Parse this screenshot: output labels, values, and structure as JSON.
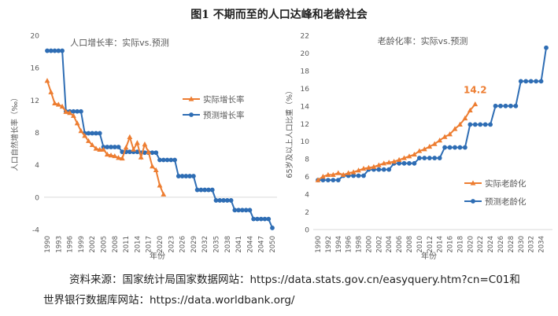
{
  "figure_title": "图1 不期而至的人口达峰和老龄社会",
  "source_line1": "资料来源：国家统计局国家数据网站：https://data.stats.gov.cn/easyquery.htm?cn=C01和",
  "source_line2": "世界银行数据库网站：https://data.worldbank.org/",
  "colors": {
    "actual": "#ED7D31",
    "forecast": "#2E6DB4"
  },
  "chart_data": [
    {
      "type": "line",
      "title": "人口增长率：实际vs.预测",
      "xlabel": "年份",
      "ylabel": "人口自然增长率（‰）",
      "ylim": [
        -4,
        20
      ],
      "yticks": [
        -4,
        0,
        4,
        8,
        12,
        16,
        20
      ],
      "xlim": [
        1990,
        2050
      ],
      "xticks": [
        1990,
        1993,
        1996,
        1999,
        2002,
        2005,
        2008,
        2011,
        2014,
        2017,
        2020,
        2023,
        2026,
        2029,
        2032,
        2035,
        2038,
        2041,
        2044,
        2047,
        2050
      ],
      "grid": "zero line only",
      "legend": "right",
      "series": [
        {
          "name": "实际增长率",
          "marker": "triangle",
          "color": "#ED7D31",
          "x": [
            1990,
            1991,
            1992,
            1993,
            1994,
            1995,
            1996,
            1997,
            1998,
            1999,
            2000,
            2001,
            2002,
            2003,
            2004,
            2005,
            2006,
            2007,
            2008,
            2009,
            2010,
            2011,
            2012,
            2013,
            2014,
            2015,
            2016,
            2017,
            2018,
            2019,
            2020,
            2021
          ],
          "y": [
            14.39,
            12.98,
            11.6,
            11.45,
            11.21,
            10.55,
            10.42,
            10.06,
            9.14,
            8.18,
            7.58,
            6.95,
            6.45,
            6.01,
            5.87,
            5.89,
            5.28,
            5.17,
            5.08,
            4.87,
            4.79,
            6.13,
            7.43,
            5.9,
            6.71,
            4.93,
            6.53,
            5.58,
            3.81,
            3.34,
            1.45,
            0.34
          ]
        },
        {
          "name": "预测增长率",
          "marker": "circle",
          "color": "#2E6DB4",
          "x": [
            1990,
            1991,
            1992,
            1993,
            1994,
            1995,
            1996,
            1997,
            1998,
            1999,
            2000,
            2001,
            2002,
            2003,
            2004,
            2005,
            2006,
            2007,
            2008,
            2009,
            2010,
            2011,
            2012,
            2013,
            2014,
            2015,
            2016,
            2017,
            2018,
            2019,
            2020,
            2021,
            2022,
            2023,
            2024,
            2025,
            2026,
            2027,
            2028,
            2029,
            2030,
            2031,
            2032,
            2033,
            2034,
            2035,
            2036,
            2037,
            2038,
            2039,
            2040,
            2041,
            2042,
            2043,
            2044,
            2045,
            2046,
            2047,
            2048,
            2049,
            2050
          ],
          "y": [
            18.1,
            18.1,
            18.1,
            18.1,
            18.1,
            10.6,
            10.6,
            10.6,
            10.6,
            10.6,
            7.9,
            7.9,
            7.9,
            7.9,
            7.9,
            6.2,
            6.2,
            6.2,
            6.2,
            6.2,
            5.6,
            5.6,
            5.6,
            5.6,
            5.6,
            5.5,
            5.5,
            5.5,
            5.5,
            5.5,
            4.6,
            4.6,
            4.6,
            4.6,
            4.6,
            2.6,
            2.6,
            2.6,
            2.6,
            2.6,
            0.9,
            0.9,
            0.9,
            0.9,
            0.9,
            -0.4,
            -0.4,
            -0.4,
            -0.4,
            -0.4,
            -1.6,
            -1.6,
            -1.6,
            -1.6,
            -1.6,
            -2.7,
            -2.7,
            -2.7,
            -2.7,
            -2.7,
            -3.8
          ]
        }
      ]
    },
    {
      "type": "line",
      "title": "老龄化率：实际vs.预测",
      "xlabel": "年份",
      "ylabel": "65岁及以上人口比重（%）",
      "ylim": [
        0,
        22
      ],
      "yticks": [
        0,
        2,
        4,
        6,
        8,
        10,
        12,
        14,
        16,
        18,
        20,
        22
      ],
      "xlim": [
        1990,
        2035
      ],
      "xticks": [
        1990,
        1992,
        1994,
        1996,
        1998,
        2000,
        2002,
        2004,
        2006,
        2008,
        2010,
        2012,
        2014,
        2016,
        2018,
        2020,
        2022,
        2024,
        2026,
        2028,
        2030,
        2032,
        2034
      ],
      "grid": "none",
      "legend": "bottom-right",
      "annotation": {
        "text": "14.2",
        "x": 2021,
        "y": 14.2
      },
      "series": [
        {
          "name": "实际老龄化",
          "marker": "triangle",
          "color": "#ED7D31",
          "x": [
            1990,
            1991,
            1992,
            1993,
            1994,
            1995,
            1996,
            1997,
            1998,
            1999,
            2000,
            2001,
            2002,
            2003,
            2004,
            2005,
            2006,
            2007,
            2008,
            2009,
            2010,
            2011,
            2012,
            2013,
            2014,
            2015,
            2016,
            2017,
            2018,
            2019,
            2020,
            2021
          ],
          "y": [
            5.6,
            6.0,
            6.2,
            6.2,
            6.4,
            6.2,
            6.4,
            6.5,
            6.7,
            6.9,
            7.0,
            7.1,
            7.3,
            7.5,
            7.6,
            7.7,
            7.9,
            8.1,
            8.3,
            8.5,
            8.9,
            9.1,
            9.4,
            9.7,
            10.1,
            10.5,
            10.8,
            11.4,
            11.9,
            12.6,
            13.5,
            14.2
          ]
        },
        {
          "name": "预测老龄化",
          "marker": "circle",
          "color": "#2E6DB4",
          "x": [
            1990,
            1991,
            1992,
            1993,
            1994,
            1995,
            1996,
            1997,
            1998,
            1999,
            2000,
            2001,
            2002,
            2003,
            2004,
            2005,
            2006,
            2007,
            2008,
            2009,
            2010,
            2011,
            2012,
            2013,
            2014,
            2015,
            2016,
            2017,
            2018,
            2019,
            2020,
            2021,
            2022,
            2023,
            2024,
            2025,
            2026,
            2027,
            2028,
            2029,
            2030,
            2031,
            2032,
            2033,
            2034,
            2035
          ],
          "y": [
            5.6,
            5.6,
            5.6,
            5.6,
            5.6,
            6.1,
            6.1,
            6.1,
            6.1,
            6.1,
            6.8,
            6.8,
            6.8,
            6.8,
            6.8,
            7.5,
            7.5,
            7.5,
            7.5,
            7.5,
            8.1,
            8.1,
            8.1,
            8.1,
            8.1,
            9.3,
            9.3,
            9.3,
            9.3,
            9.3,
            11.9,
            11.9,
            11.9,
            11.9,
            11.9,
            14.0,
            14.0,
            14.0,
            14.0,
            14.0,
            16.8,
            16.8,
            16.8,
            16.8,
            16.8,
            20.6
          ]
        }
      ]
    }
  ]
}
